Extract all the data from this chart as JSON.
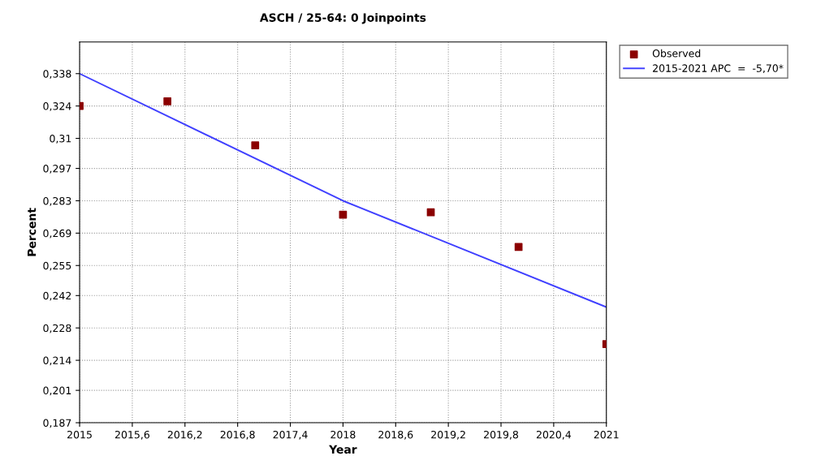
{
  "chart_data": {
    "type": "scatter",
    "title": "ASCH / 25-64: 0 Joinpoints",
    "xlabel": "Year",
    "ylabel": "Percent",
    "xlim": [
      2015,
      2021
    ],
    "ylim": [
      0.187,
      0.3517
    ],
    "xticks": [
      2015,
      {
        "value": 2015.6,
        "label": "2015,6"
      },
      {
        "value": 2016.2,
        "label": "2016,2"
      },
      {
        "value": 2016.8,
        "label": "2016,8"
      },
      {
        "value": 2017.4,
        "label": "2017,4"
      },
      2018,
      {
        "value": 2018.6,
        "label": "2018,6"
      },
      {
        "value": 2019.2,
        "label": "2019,2"
      },
      {
        "value": 2019.8,
        "label": "2019,8"
      },
      {
        "value": 2020.4,
        "label": "2020,4"
      },
      2021
    ],
    "yticks": [
      {
        "value": 0.187,
        "label": "0,187"
      },
      {
        "value": 0.201,
        "label": "0,201"
      },
      {
        "value": 0.214,
        "label": "0,214"
      },
      {
        "value": 0.228,
        "label": "0,228"
      },
      {
        "value": 0.242,
        "label": "0,242"
      },
      {
        "value": 0.255,
        "label": "0,255"
      },
      {
        "value": 0.269,
        "label": "0,269"
      },
      {
        "value": 0.283,
        "label": "0,283"
      },
      {
        "value": 0.297,
        "label": "0,297"
      },
      {
        "value": 0.31,
        "label": "0,31"
      },
      {
        "value": 0.324,
        "label": "0,324"
      },
      {
        "value": 0.338,
        "label": "0,338"
      }
    ],
    "grid": true,
    "legend": "top right",
    "series": [
      {
        "name": "Observed",
        "marker": "square",
        "color": "#8b0000",
        "x": [
          2015,
          2016,
          2017,
          2018,
          2019,
          2020,
          2021
        ],
        "values": [
          0.324,
          0.326,
          0.307,
          0.277,
          0.278,
          0.263,
          0.221
        ]
      },
      {
        "name": "2015-2021 APC  =  -5,70*",
        "type": "line",
        "line_style": "solid",
        "color": "#4040ff",
        "x": [
          2015,
          2018,
          2021
        ],
        "values": [
          0.338,
          0.283,
          0.237
        ]
      }
    ]
  }
}
